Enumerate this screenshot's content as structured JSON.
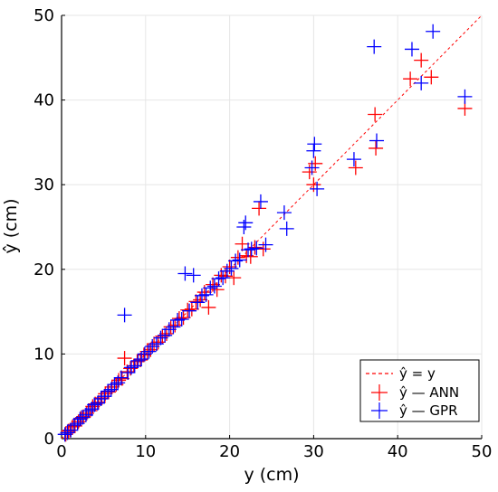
{
  "chart_data": {
    "type": "scatter",
    "xlabel": "y (cm)",
    "ylabel": "ŷ (cm)",
    "xlim": [
      0,
      50
    ],
    "ylim": [
      0,
      50
    ],
    "x_ticks": [
      "0",
      "10",
      "20",
      "30",
      "40",
      "50"
    ],
    "y_ticks": [
      "0",
      "10",
      "20",
      "30",
      "40",
      "50"
    ],
    "grid": true,
    "legend_position": "bottom-right",
    "reference_line": {
      "label": "ŷ = y",
      "color": "#ff0000",
      "style": "dashed"
    },
    "series": [
      {
        "name": "ŷ — ANN",
        "color": "#ff0000",
        "marker": "plus",
        "points": [
          [
            0.5,
            0.5
          ],
          [
            0.8,
            0.9
          ],
          [
            1.0,
            1.0
          ],
          [
            1.3,
            1.4
          ],
          [
            1.6,
            1.5
          ],
          [
            2.0,
            2.0
          ],
          [
            2.3,
            2.4
          ],
          [
            2.6,
            2.6
          ],
          [
            3.0,
            3.0
          ],
          [
            3.4,
            3.3
          ],
          [
            3.7,
            3.8
          ],
          [
            4.0,
            4.1
          ],
          [
            4.4,
            4.3
          ],
          [
            4.8,
            4.8
          ],
          [
            5.2,
            5.3
          ],
          [
            5.6,
            5.5
          ],
          [
            6.0,
            6.1
          ],
          [
            6.5,
            6.4
          ],
          [
            6.8,
            6.9
          ],
          [
            7.2,
            7.1
          ],
          [
            7.5,
            9.5
          ],
          [
            7.8,
            7.9
          ],
          [
            8.2,
            8.3
          ],
          [
            8.6,
            8.6
          ],
          [
            9.0,
            9.1
          ],
          [
            9.4,
            9.3
          ],
          [
            9.8,
            9.9
          ],
          [
            10.2,
            10.3
          ],
          [
            10.6,
            10.5
          ],
          [
            11.0,
            11.2
          ],
          [
            11.5,
            11.4
          ],
          [
            12.0,
            12.1
          ],
          [
            12.5,
            12.4
          ],
          [
            13.0,
            13.2
          ],
          [
            13.5,
            13.4
          ],
          [
            14.0,
            14.2
          ],
          [
            14.5,
            14.3
          ],
          [
            15.0,
            15.2
          ],
          [
            15.5,
            15.3
          ],
          [
            16.0,
            16.2
          ],
          [
            16.5,
            16.4
          ],
          [
            17.0,
            17.3
          ],
          [
            17.5,
            15.5
          ],
          [
            18.0,
            18.2
          ],
          [
            18.5,
            17.6
          ],
          [
            19.0,
            19.3
          ],
          [
            19.5,
            19.2
          ],
          [
            20.0,
            20.3
          ],
          [
            20.5,
            19.0
          ],
          [
            21.0,
            21.4
          ],
          [
            21.5,
            23.0
          ],
          [
            22.0,
            21.6
          ],
          [
            22.5,
            21.5
          ],
          [
            23.0,
            22.6
          ],
          [
            23.5,
            27.2
          ],
          [
            24.0,
            22.4
          ],
          [
            29.5,
            31.5
          ],
          [
            30.0,
            30.0
          ],
          [
            30.2,
            32.5
          ],
          [
            35.0,
            32.0
          ],
          [
            37.3,
            38.3
          ],
          [
            37.4,
            34.3
          ],
          [
            41.5,
            42.5
          ],
          [
            42.8,
            44.7
          ],
          [
            44.0,
            42.7
          ],
          [
            48.0,
            39.0
          ]
        ]
      },
      {
        "name": "ŷ — GPR",
        "color": "#0000ff",
        "marker": "plus",
        "points": [
          [
            0.4,
            0.5
          ],
          [
            0.7,
            0.7
          ],
          [
            1.1,
            1.0
          ],
          [
            1.5,
            1.6
          ],
          [
            1.9,
            1.8
          ],
          [
            2.2,
            2.3
          ],
          [
            2.5,
            2.5
          ],
          [
            2.9,
            2.8
          ],
          [
            3.2,
            3.3
          ],
          [
            3.6,
            3.5
          ],
          [
            3.9,
            4.0
          ],
          [
            4.3,
            4.2
          ],
          [
            4.7,
            4.7
          ],
          [
            5.1,
            5.0
          ],
          [
            5.5,
            5.6
          ],
          [
            5.9,
            5.8
          ],
          [
            6.3,
            6.4
          ],
          [
            6.7,
            6.6
          ],
          [
            7.1,
            7.2
          ],
          [
            7.5,
            14.6
          ],
          [
            7.9,
            7.8
          ],
          [
            8.3,
            8.4
          ],
          [
            8.7,
            8.6
          ],
          [
            9.1,
            9.2
          ],
          [
            9.5,
            9.4
          ],
          [
            9.9,
            10.0
          ],
          [
            10.4,
            10.3
          ],
          [
            10.8,
            10.9
          ],
          [
            11.3,
            11.2
          ],
          [
            11.8,
            11.9
          ],
          [
            12.3,
            12.2
          ],
          [
            12.8,
            12.9
          ],
          [
            13.3,
            13.2
          ],
          [
            13.8,
            14.0
          ],
          [
            14.3,
            14.1
          ],
          [
            14.7,
            19.5
          ],
          [
            15.2,
            15.1
          ],
          [
            15.7,
            19.3
          ],
          [
            16.2,
            16.1
          ],
          [
            16.7,
            16.9
          ],
          [
            17.2,
            17.0
          ],
          [
            17.7,
            17.8
          ],
          [
            18.2,
            18.0
          ],
          [
            18.7,
            18.9
          ],
          [
            19.2,
            19.0
          ],
          [
            19.7,
            19.8
          ],
          [
            20.2,
            20.1
          ],
          [
            20.7,
            21.0
          ],
          [
            21.2,
            21.1
          ],
          [
            21.7,
            25.0
          ],
          [
            21.9,
            25.5
          ],
          [
            22.2,
            22.3
          ],
          [
            22.6,
            22.4
          ],
          [
            23.2,
            22.5
          ],
          [
            23.7,
            28.0
          ],
          [
            24.3,
            22.9
          ],
          [
            26.5,
            26.7
          ],
          [
            26.8,
            24.8
          ],
          [
            29.8,
            32.0
          ],
          [
            30.0,
            34.0
          ],
          [
            30.1,
            34.8
          ],
          [
            30.4,
            29.5
          ],
          [
            34.8,
            33.0
          ],
          [
            37.2,
            46.3
          ],
          [
            37.5,
            35.2
          ],
          [
            41.7,
            46.0
          ],
          [
            42.8,
            42.0
          ],
          [
            44.2,
            48.1
          ],
          [
            48.0,
            40.4
          ]
        ]
      }
    ]
  }
}
